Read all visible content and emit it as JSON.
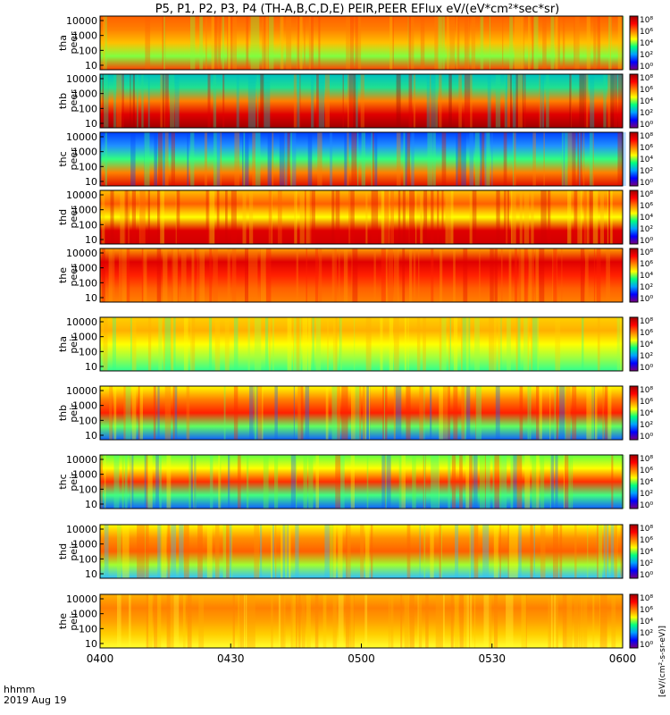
{
  "chart_data": {
    "type": "heatmap",
    "title": "P5, P1, P2, P3, P4 (TH-A,B,C,D,E) PEIR,PEER EFlux eV/(eV*cm²*sec*sr)",
    "colorbar_label": "[eV/(cm²-s-sr-eV)]",
    "colorbar_ticks": [
      "10⁸",
      "10⁶",
      "10⁴",
      "10²",
      "10⁰"
    ],
    "y_scale": "log",
    "y_ticks": [
      "10000",
      "1000",
      "100",
      "10"
    ],
    "x_ticks": [
      "0400",
      "0430",
      "0500",
      "0530",
      "0600"
    ],
    "x_label_lines": [
      "hhmm",
      "2019 Aug 19"
    ],
    "colorscale": [
      "#7a007a",
      "#0000ff",
      "#00a0ff",
      "#00ff80",
      "#ffff00",
      "#ff8000",
      "#ff0000",
      "#a00000"
    ],
    "panels": [
      {
        "name": "tha peer",
        "label_lines": [
          "tha",
          "peer"
        ]
      },
      {
        "name": "thb peer",
        "label_lines": [
          "thb",
          "peer"
        ]
      },
      {
        "name": "thc peer",
        "label_lines": [
          "thc",
          "peer"
        ]
      },
      {
        "name": "thd peer",
        "label_lines": [
          "thd",
          "peer"
        ]
      },
      {
        "name": "the peer",
        "label_lines": [
          "the",
          "peer"
        ]
      },
      {
        "name": "tha peir",
        "label_lines": [
          "tha",
          "peir"
        ]
      },
      {
        "name": "thb peir",
        "label_lines": [
          "thb",
          "peir"
        ]
      },
      {
        "name": "thc peir",
        "label_lines": [
          "thc",
          "peir"
        ]
      },
      {
        "name": "thd peir",
        "label_lines": [
          "thd",
          "peir"
        ]
      },
      {
        "name": "the peir",
        "label_lines": [
          "the",
          "peir"
        ]
      }
    ]
  }
}
